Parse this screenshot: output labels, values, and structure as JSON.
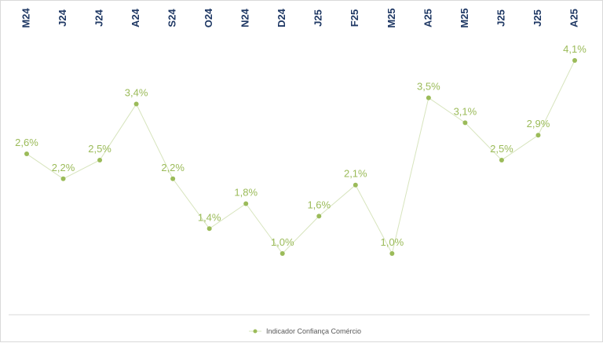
{
  "chart_data": {
    "type": "line",
    "categories": [
      "M24",
      "J24",
      "J24",
      "A24",
      "S24",
      "O24",
      "N24",
      "D24",
      "J25",
      "F25",
      "M25",
      "A25",
      "M25",
      "J25",
      "J25",
      "A25"
    ],
    "series": [
      {
        "name": "Indicador Confiança Comércio",
        "values": [
          2.6,
          2.2,
          2.5,
          3.4,
          2.2,
          1.4,
          1.8,
          1.0,
          1.6,
          2.1,
          1.0,
          3.5,
          3.1,
          2.5,
          2.9,
          4.1
        ],
        "labels": [
          "2,6%",
          "2,2%",
          "2,5%",
          "3,4%",
          "2,2%",
          "1,4%",
          "1,8%",
          "1,0%",
          "1,6%",
          "2,1%",
          "1,0%",
          "3,5%",
          "3,1%",
          "2,5%",
          "2,9%",
          "4,1%"
        ]
      }
    ],
    "title": "",
    "xlabel": "",
    "ylabel": "",
    "x_axis_position": "top",
    "legend_position": "bottom",
    "grid": false,
    "colors": {
      "series": "#9bbb59",
      "line": "#d7e4bd",
      "ticks": "#1f3864",
      "axis": "#d9d9d9"
    }
  }
}
